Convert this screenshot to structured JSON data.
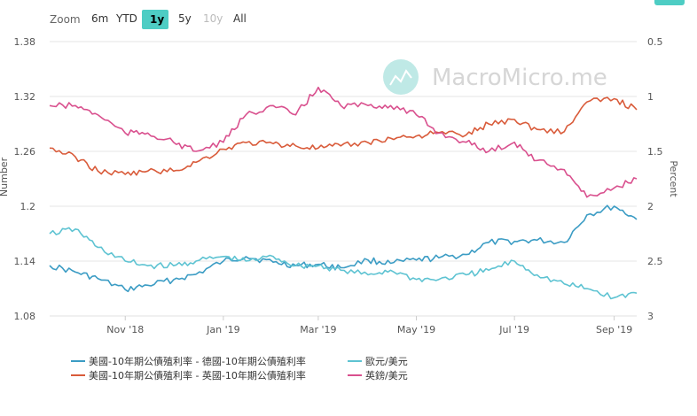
{
  "range_selector": {
    "zoom_label": "Zoom",
    "buttons": [
      {
        "label": "6m",
        "state": "normal"
      },
      {
        "label": "YTD",
        "state": "normal"
      },
      {
        "label": "1y",
        "state": "selected"
      },
      {
        "label": "5y",
        "state": "normal"
      },
      {
        "label": "10y",
        "state": "disabled"
      },
      {
        "label": "All",
        "state": "normal"
      }
    ]
  },
  "watermark": {
    "text": "MacroMicro.me"
  },
  "colors": {
    "spread_us_de": "#3b9cc4",
    "eurusd": "#5ec3d2",
    "spread_us_uk": "#d95b3a",
    "gbpusd": "#d9508e",
    "selected_button": "#4ecdc4",
    "grid": "#e6e6e6"
  },
  "chart_data": {
    "type": "line",
    "title": "",
    "x_ticks": [
      "Nov '18",
      "Jan '19",
      "Mar '19",
      "May '19",
      "Jul '19",
      "Sep '19"
    ],
    "x_range": [
      "2018-09-15",
      "2019-09-15"
    ],
    "left_axis": {
      "title": "Number",
      "ticks": [
        "1.38",
        "1.32",
        "1.26",
        "1.2",
        "1.14",
        "1.08"
      ],
      "range": [
        1.08,
        1.38
      ]
    },
    "right_axis": {
      "title": "Percent",
      "ticks": [
        "0.5",
        "1",
        "1.5",
        "2",
        "2.5",
        "3"
      ],
      "range": [
        0.5,
        3
      ],
      "reversed": true
    },
    "grid": true,
    "legend_position": "bottom",
    "series": [
      {
        "name": "美國-10年期公債殖利率 - 德國-10年期公債殖利率",
        "axis": "right",
        "color": "#3b9cc4",
        "x": [
          "2018-09-15",
          "2018-10-01",
          "2018-10-15",
          "2018-11-01",
          "2018-11-15",
          "2018-12-01",
          "2018-12-15",
          "2019-01-01",
          "2019-01-15",
          "2019-02-01",
          "2019-02-15",
          "2019-03-01",
          "2019-03-15",
          "2019-04-01",
          "2019-04-15",
          "2019-05-01",
          "2019-05-15",
          "2019-06-01",
          "2019-06-15",
          "2019-07-01",
          "2019-07-15",
          "2019-08-01",
          "2019-08-15",
          "2019-09-01",
          "2019-09-15"
        ],
        "y": [
          2.54,
          2.6,
          2.66,
          2.76,
          2.72,
          2.67,
          2.62,
          2.5,
          2.46,
          2.51,
          2.54,
          2.53,
          2.56,
          2.49,
          2.52,
          2.49,
          2.47,
          2.44,
          2.33,
          2.32,
          2.31,
          2.33,
          2.08,
          2.0,
          2.12
        ]
      },
      {
        "name": "歐元/美元",
        "axis": "left",
        "color": "#5ec3d2",
        "x": [
          "2018-09-15",
          "2018-10-01",
          "2018-10-15",
          "2018-11-01",
          "2018-11-15",
          "2018-12-01",
          "2018-12-15",
          "2019-01-01",
          "2019-01-15",
          "2019-02-01",
          "2019-02-15",
          "2019-03-01",
          "2019-03-15",
          "2019-04-01",
          "2019-04-15",
          "2019-05-01",
          "2019-05-15",
          "2019-06-01",
          "2019-06-15",
          "2019-07-01",
          "2019-07-15",
          "2019-08-01",
          "2019-08-15",
          "2019-09-01",
          "2019-09-15"
        ],
        "y": [
          1.17,
          1.175,
          1.155,
          1.14,
          1.135,
          1.135,
          1.14,
          1.145,
          1.14,
          1.145,
          1.135,
          1.135,
          1.13,
          1.125,
          1.13,
          1.12,
          1.12,
          1.125,
          1.13,
          1.14,
          1.125,
          1.115,
          1.11,
          1.1,
          1.105
        ]
      },
      {
        "name": "美國-10年期公債殖利率 - 英國-10年期公債殖利率",
        "axis": "right",
        "color": "#d95b3a",
        "x": [
          "2018-09-15",
          "2018-10-01",
          "2018-10-15",
          "2018-11-01",
          "2018-11-15",
          "2018-12-01",
          "2018-12-15",
          "2019-01-01",
          "2019-01-15",
          "2019-02-01",
          "2019-02-15",
          "2019-03-01",
          "2019-03-15",
          "2019-04-01",
          "2019-04-15",
          "2019-05-01",
          "2019-05-15",
          "2019-06-01",
          "2019-06-15",
          "2019-07-01",
          "2019-07-15",
          "2019-08-01",
          "2019-08-15",
          "2019-09-01",
          "2019-09-15"
        ],
        "y": [
          1.47,
          1.55,
          1.68,
          1.71,
          1.68,
          1.68,
          1.6,
          1.48,
          1.42,
          1.43,
          1.45,
          1.47,
          1.45,
          1.42,
          1.38,
          1.36,
          1.33,
          1.35,
          1.25,
          1.21,
          1.3,
          1.32,
          1.05,
          1.02,
          1.12
        ]
      },
      {
        "name": "英鎊/美元",
        "axis": "left",
        "color": "#d9508e",
        "x": [
          "2018-09-15",
          "2018-10-01",
          "2018-10-15",
          "2018-11-01",
          "2018-11-15",
          "2018-12-01",
          "2018-12-15",
          "2019-01-01",
          "2019-01-15",
          "2019-02-01",
          "2019-02-15",
          "2019-03-01",
          "2019-03-15",
          "2019-04-01",
          "2019-04-15",
          "2019-05-01",
          "2019-05-15",
          "2019-06-01",
          "2019-06-15",
          "2019-07-01",
          "2019-07-15",
          "2019-08-01",
          "2019-08-15",
          "2019-09-01",
          "2019-09-15"
        ],
        "y": [
          1.31,
          1.31,
          1.3,
          1.28,
          1.28,
          1.27,
          1.26,
          1.27,
          1.3,
          1.31,
          1.3,
          1.33,
          1.31,
          1.31,
          1.31,
          1.3,
          1.28,
          1.27,
          1.26,
          1.27,
          1.25,
          1.24,
          1.21,
          1.22,
          1.23
        ]
      }
    ]
  }
}
